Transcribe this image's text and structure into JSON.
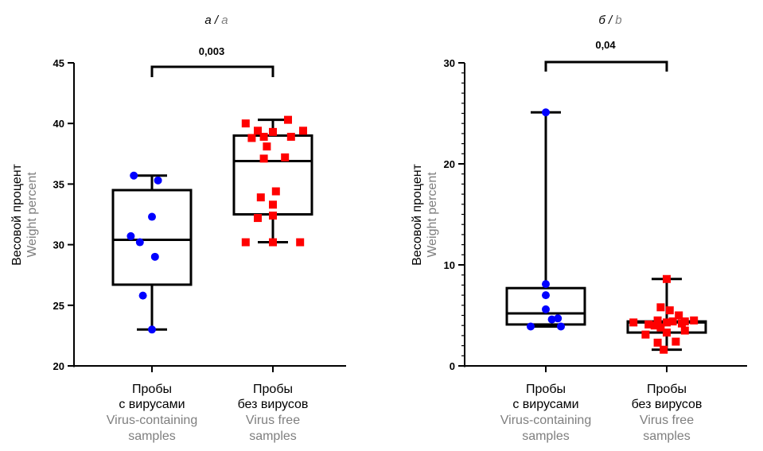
{
  "chart_data": [
    {
      "type": "box",
      "title_ru": "а /",
      "title_en": "a",
      "ylabel_ru": "Весовой процент",
      "ylabel_en": "Weight percent",
      "ylim": [
        20,
        45
      ],
      "yticks": [
        20,
        25,
        30,
        35,
        40,
        45
      ],
      "significance": "0,003",
      "colors": [
        "#0000ff",
        "#ff0000"
      ],
      "groups": [
        {
          "label_ru": [
            "Пробы",
            "с вирусами"
          ],
          "label_en": [
            "Virus-containing",
            "samples"
          ],
          "marker": "circle",
          "box": {
            "min": 23.0,
            "q1": 26.7,
            "median": 30.4,
            "q3": 34.5,
            "max": 35.7
          },
          "points": [
            23.0,
            25.8,
            29.0,
            30.2,
            30.7,
            32.3,
            35.3,
            35.7
          ]
        },
        {
          "label_ru": [
            "Пробы",
            "без вирусов"
          ],
          "label_en": [
            "Virus free",
            "samples"
          ],
          "marker": "square",
          "box": {
            "min": 30.2,
            "q1": 32.5,
            "median": 36.9,
            "q3": 39.0,
            "max": 40.3
          },
          "points": [
            30.2,
            30.2,
            30.2,
            32.2,
            32.4,
            33.3,
            33.9,
            34.4,
            37.1,
            37.2,
            38.1,
            38.8,
            38.9,
            38.9,
            39.3,
            39.4,
            39.4,
            40.0,
            40.3
          ]
        }
      ]
    },
    {
      "type": "box",
      "title_ru": "б /",
      "title_en": "b",
      "ylabel_ru": "Весовой процент",
      "ylabel_en": "Weight percent",
      "ylim": [
        0,
        30
      ],
      "yticks": [
        0,
        10,
        20,
        30
      ],
      "significance": "0,04",
      "colors": [
        "#0000ff",
        "#ff0000"
      ],
      "groups": [
        {
          "label_ru": [
            "Пробы",
            "с вирусами"
          ],
          "label_en": [
            "Virus-containing",
            "samples"
          ],
          "marker": "circle",
          "box": {
            "min": 3.9,
            "q1": 4.1,
            "median": 5.2,
            "q3": 7.7,
            "max": 25.1
          },
          "points": [
            3.9,
            3.9,
            4.6,
            4.7,
            5.6,
            7.0,
            8.1,
            25.1
          ]
        },
        {
          "label_ru": [
            "Пробы",
            "без вирусов"
          ],
          "label_en": [
            "Virus free",
            "samples"
          ],
          "marker": "square",
          "box": {
            "min": 1.6,
            "q1": 3.3,
            "median": 4.3,
            "q3": 4.4,
            "max": 8.6
          },
          "points": [
            1.6,
            2.3,
            2.4,
            3.1,
            3.3,
            3.5,
            3.8,
            4.0,
            4.1,
            4.2,
            4.3,
            4.3,
            4.4,
            4.4,
            4.5,
            4.5,
            5.0,
            5.5,
            5.8,
            8.6
          ]
        }
      ]
    }
  ]
}
